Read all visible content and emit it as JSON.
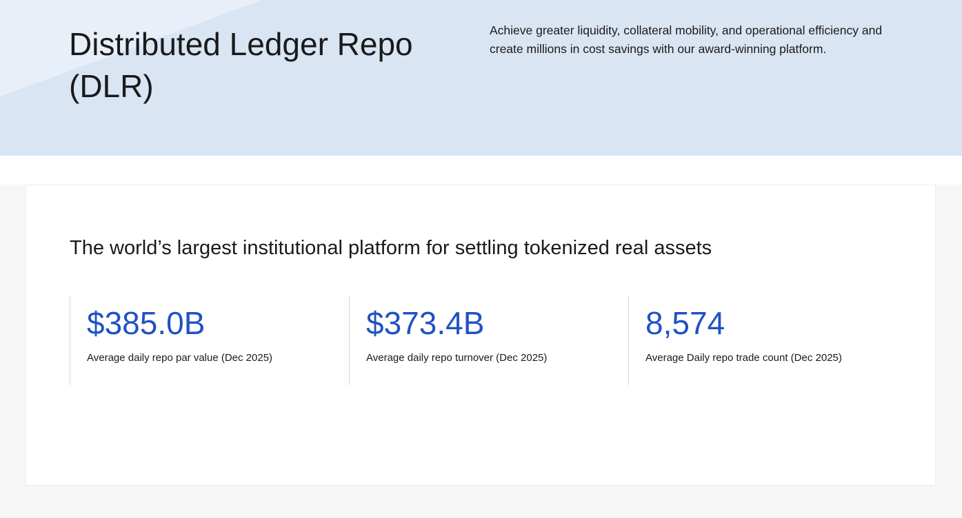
{
  "hero": {
    "title": "Distributed Ledger Repo (DLR)",
    "description": "Achieve greater liquidity, collateral mobility, and operational efficiency and create millions in cost savings with our award-winning platform."
  },
  "stats_section": {
    "heading": "The world’s largest institutional platform for settling tokenized real assets",
    "stats": [
      {
        "value": "$385.0B",
        "label": "Average daily repo par value (Dec 2025)"
      },
      {
        "value": "$373.4B",
        "label": "Average daily repo turnover (Dec 2025)"
      },
      {
        "value": "8,574",
        "label": "Average Daily repo trade count (Dec 2025)"
      }
    ]
  },
  "colors": {
    "accent_blue": "#2152c3",
    "hero_background": "#dae5f4",
    "hero_diagonal": "#e9eff9",
    "page_background": "#f6f6f6"
  }
}
